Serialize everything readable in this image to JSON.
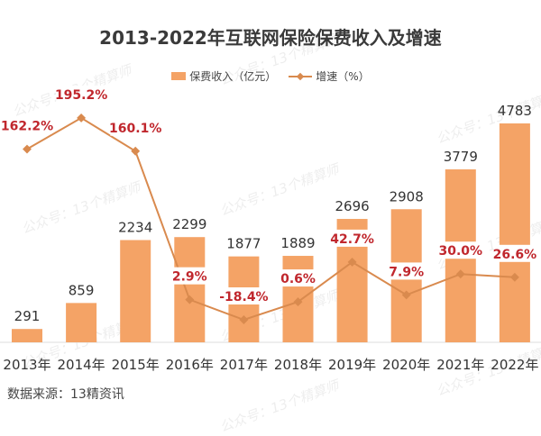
{
  "chart_data": {
    "type": "bar",
    "title": "2013-2022年互联网保险保费收入及增速",
    "categories": [
      "2013年",
      "2014年",
      "2015年",
      "2016年",
      "2017年",
      "2018年",
      "2019年",
      "2020年",
      "2021年",
      "2022年"
    ],
    "series": [
      {
        "name": "保费收入（亿元）",
        "type": "bar",
        "values": [
          291,
          859,
          2234,
          2299,
          1877,
          1889,
          2696,
          2908,
          3779,
          4783
        ],
        "color": "#F4A366"
      },
      {
        "name": "增速（%）",
        "type": "line",
        "values": [
          162.2,
          195.2,
          160.1,
          2.9,
          -18.4,
          0.6,
          42.7,
          7.9,
          30.0,
          26.6
        ],
        "color": "#D98A4E",
        "label_color": "#C0272D"
      }
    ],
    "bar_labels": [
      "291",
      "859",
      "2234",
      "2299",
      "1877",
      "1889",
      "2696",
      "2908",
      "3779",
      "4783"
    ],
    "line_labels": [
      "162.2%",
      "195.2%",
      "160.1%",
      "2.9%",
      "-18.4%",
      "0.6%",
      "42.7%",
      "7.9%",
      "30.0%",
      "26.6%"
    ],
    "legend_position": "top",
    "grid": false
  },
  "source": "数据来源：13精资讯",
  "watermark": "公众号：13个精算师"
}
